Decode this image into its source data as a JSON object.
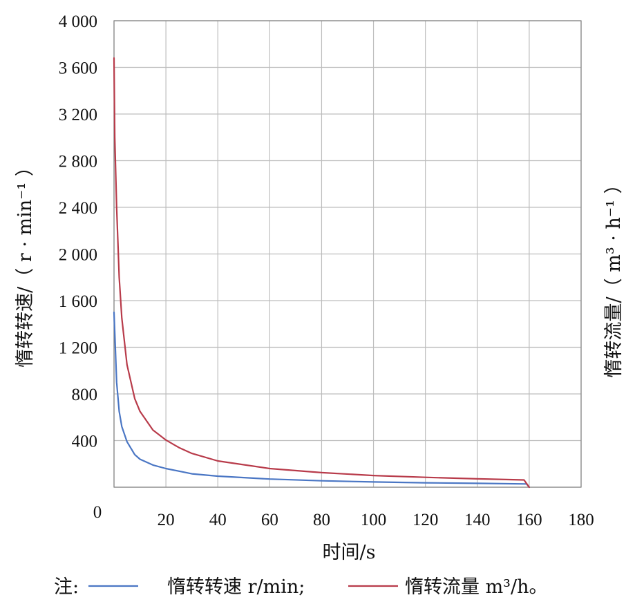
{
  "chart_data": {
    "type": "line",
    "xlabel": "时间/s",
    "ylabel_left": "惰转转速/（ r · min⁻¹ ）",
    "ylabel_right": "惰转流量/（ m³ · h⁻¹ ）",
    "xlim": [
      0,
      180
    ],
    "ylim": [
      0,
      4000
    ],
    "x_ticks": [
      "0",
      "20",
      "40",
      "60",
      "80",
      "100",
      "120",
      "140",
      "160",
      "180"
    ],
    "y_ticks": [
      "",
      "400",
      "800",
      "1 200",
      "1 600",
      "2 000",
      "2 400",
      "2 800",
      "3 200",
      "3 600",
      "4 000"
    ],
    "grid": true,
    "legend_position": "bottom",
    "legend_prefix": "注:",
    "series": [
      {
        "name": "惰转转速 r/min;",
        "color": "#4a76c4",
        "x": [
          0,
          0.5,
          1,
          2,
          3,
          5,
          8,
          10,
          15,
          20,
          30,
          40,
          60,
          80,
          100,
          120,
          140,
          159,
          160
        ],
        "y": [
          1500,
          1200,
          900,
          650,
          520,
          390,
          280,
          240,
          190,
          160,
          115,
          95,
          70,
          55,
          45,
          38,
          33,
          28,
          0
        ]
      },
      {
        "name": "惰转流量 m³/h。",
        "color": "#b83b4a",
        "x": [
          0,
          0.3,
          1,
          2,
          3,
          5,
          8,
          10,
          15,
          20,
          25,
          30,
          40,
          60,
          80,
          100,
          120,
          140,
          158,
          160
        ],
        "y": [
          3680,
          3000,
          2400,
          1800,
          1450,
          1050,
          760,
          650,
          490,
          405,
          340,
          290,
          225,
          160,
          125,
          100,
          85,
          72,
          62,
          0
        ]
      }
    ]
  }
}
